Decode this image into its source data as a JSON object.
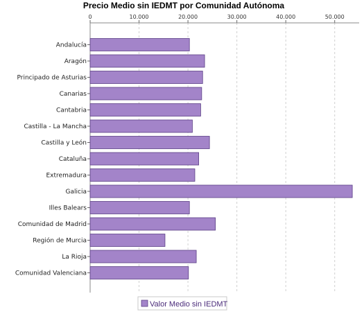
{
  "chart_data": {
    "type": "bar",
    "orientation": "horizontal",
    "title": "Precio Medio sin IEDMT por Comunidad Autónoma",
    "categories": [
      "Andalucía",
      "Aragón",
      "Principado de Asturias",
      "Canarias",
      "Cantabria",
      "Castilla - La Mancha",
      "Castilla y León",
      "Cataluña",
      "Extremadura",
      "Galicia",
      "Illes Balears",
      "Comunidad de Madrid",
      "Región de Murcia",
      "La Rioja",
      "Comunidad Valenciana"
    ],
    "series": [
      {
        "name": "Valor Medio sin IEDMT",
        "values": [
          20300,
          23400,
          23000,
          22800,
          22600,
          20900,
          24400,
          22200,
          21400,
          53600,
          20300,
          25600,
          15300,
          21700,
          20100
        ]
      }
    ],
    "xlim": [
      0,
      55000
    ],
    "xticks": [
      "0",
      "10.000",
      "20.000",
      "30.000",
      "40.000",
      "50.000"
    ],
    "xtick_values": [
      0,
      10000,
      20000,
      30000,
      40000,
      50000
    ],
    "x_axis_position": "top",
    "grid": true,
    "legend_position": "bottom",
    "colors": {
      "bar_fill": "#a384c9",
      "bar_stroke": "#5b3f86",
      "legend_text": "#4b2c7a",
      "grid": "#d0d0d0"
    }
  }
}
